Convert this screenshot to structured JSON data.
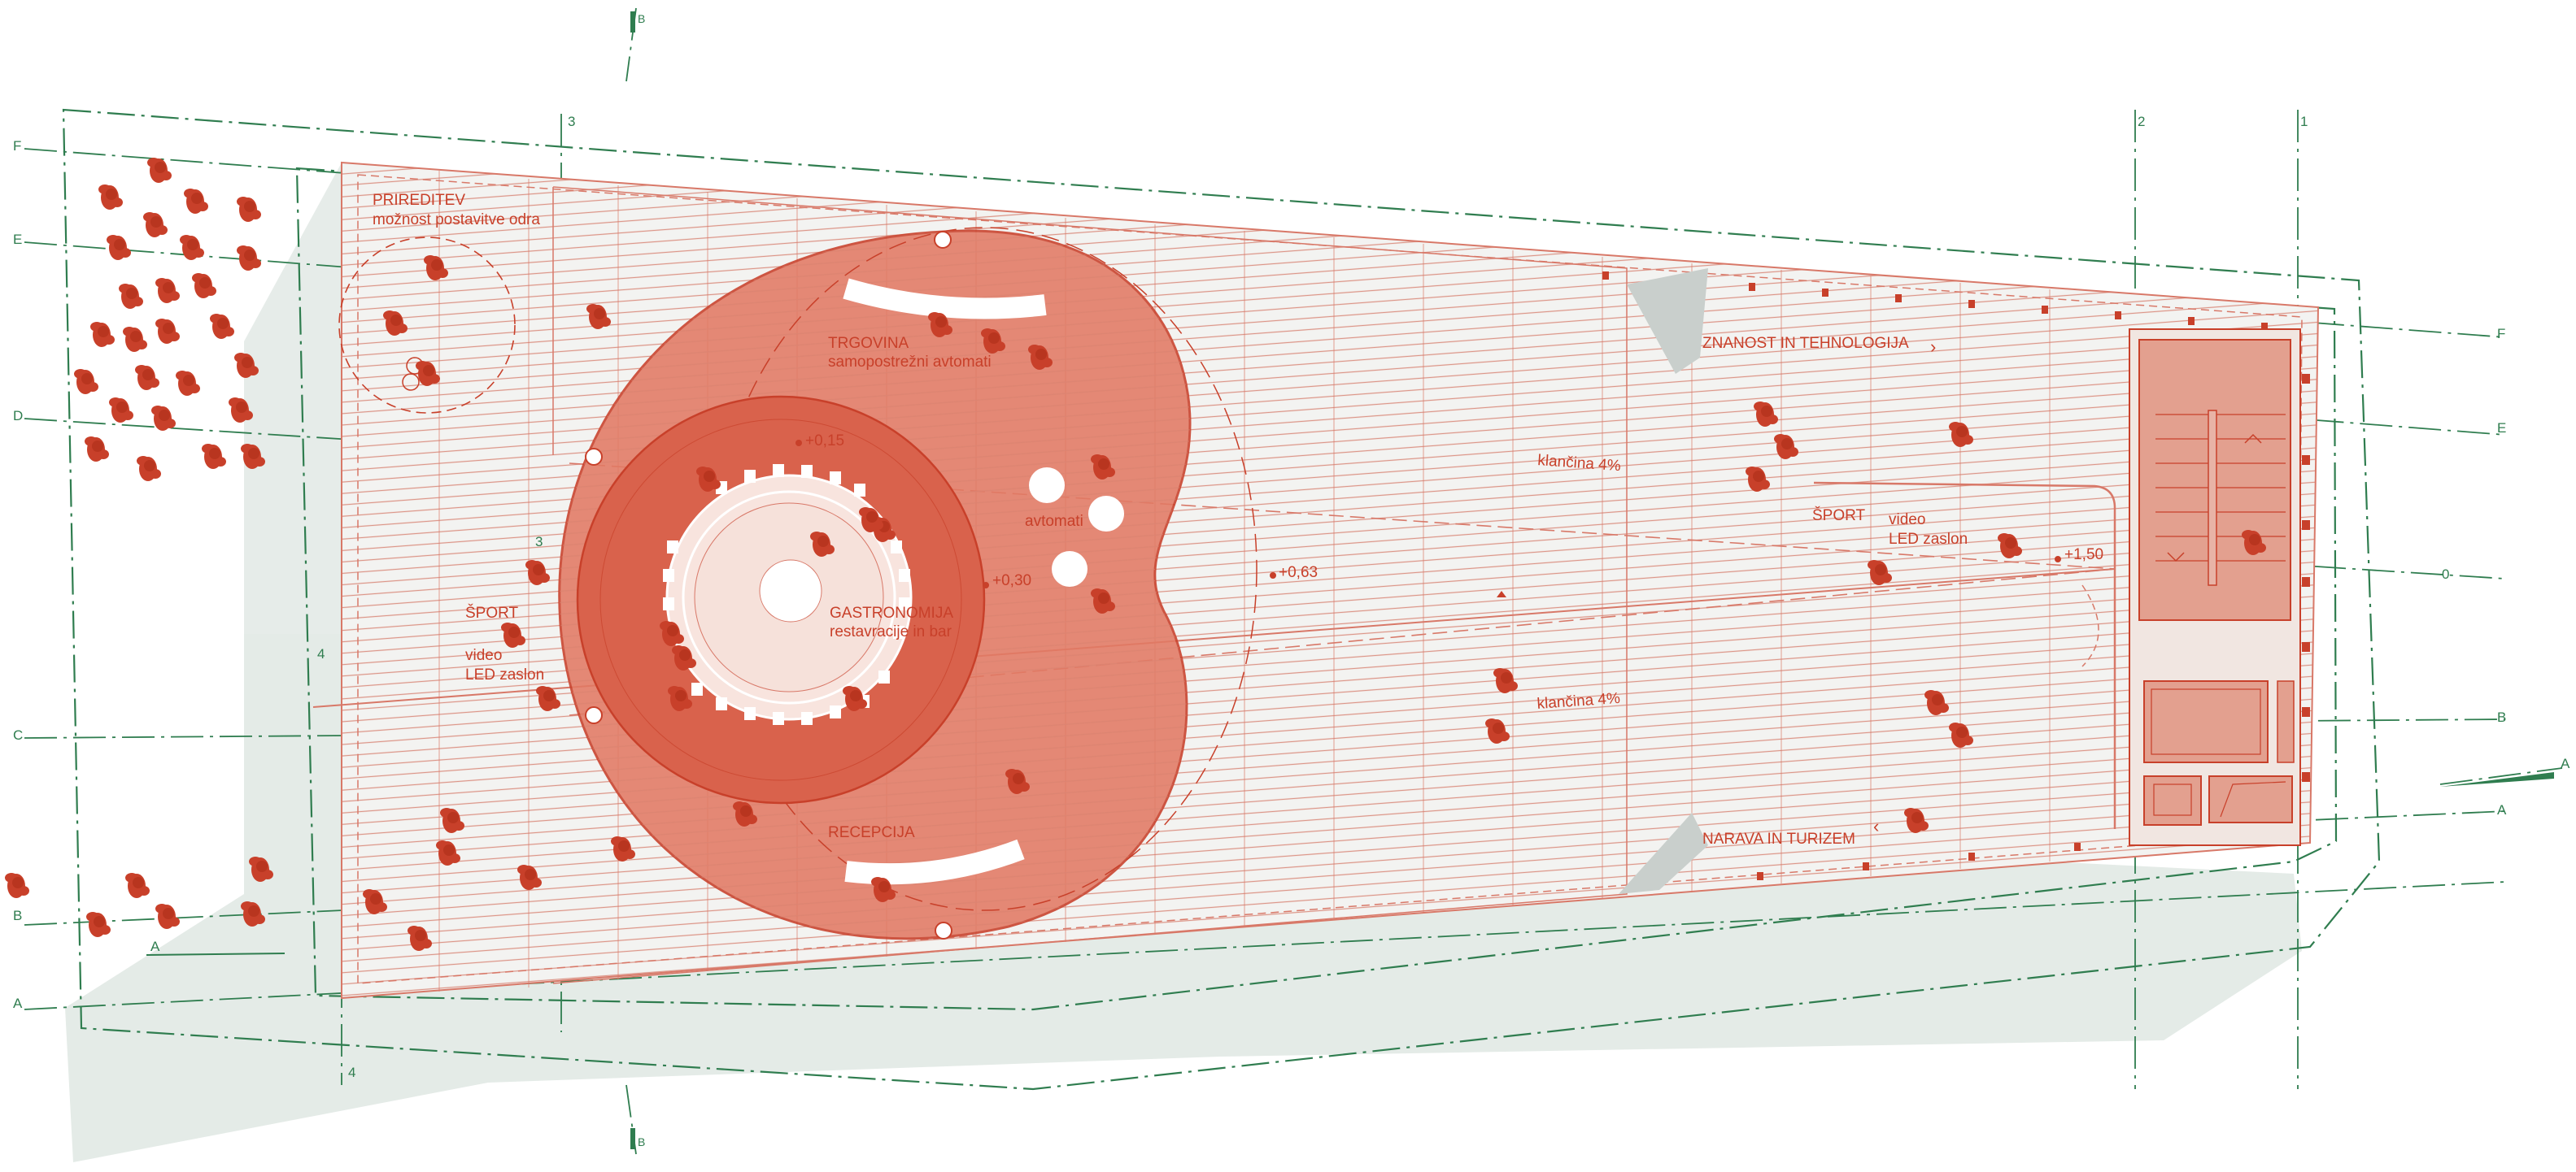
{
  "colors": {
    "accent": "#c8402a",
    "accent_fill": "#e0705c",
    "grid": "#2f7d4f",
    "shadow": "#dfe6e2",
    "line": "#d87868"
  },
  "labels": {
    "prireditev": "PRIREDITEV",
    "prireditev_sub": "možnost postavitve odra",
    "trgovina": "TRGOVINA",
    "trgovina_sub": "samopostrežni avtomati",
    "avtomati": "avtomati",
    "gastronomija": "GASTRONOMIJA",
    "gastronomija_sub": "restavracije in bar",
    "recepcija": "RECEPCIJA",
    "sport_left": "ŠPORT",
    "video_left": "video",
    "led_left": "LED zaslon",
    "sport_right": "ŠPORT",
    "video_right": "video",
    "led_right": "LED zaslon",
    "znanost": "ZNANOST IN TEHNOLOGIJA",
    "narava": "NARAVA IN TURIZEM",
    "klancina_top": "klančina 4%",
    "klancina_bottom": "klančina 4%"
  },
  "levels": {
    "l015": "+0,15",
    "l030": "+0,30",
    "l063": "+0,63",
    "l150": "+1,50"
  },
  "grid_axes": {
    "F_left": "F",
    "E_left": "E",
    "D_left": "D",
    "C_left": "C",
    "B_left": "B",
    "A_left": "A",
    "F_right": "F",
    "E_right": "E",
    "B_right": "B",
    "A_right": "A",
    "zero_right": "0",
    "n1": "1",
    "n2": "2",
    "n3_top": "3",
    "n3_mid": "3",
    "n4_mid": "4",
    "n4_bot": "4"
  },
  "section_marks": {
    "top": "B",
    "bottom": "B",
    "right": "A",
    "left": "A"
  }
}
